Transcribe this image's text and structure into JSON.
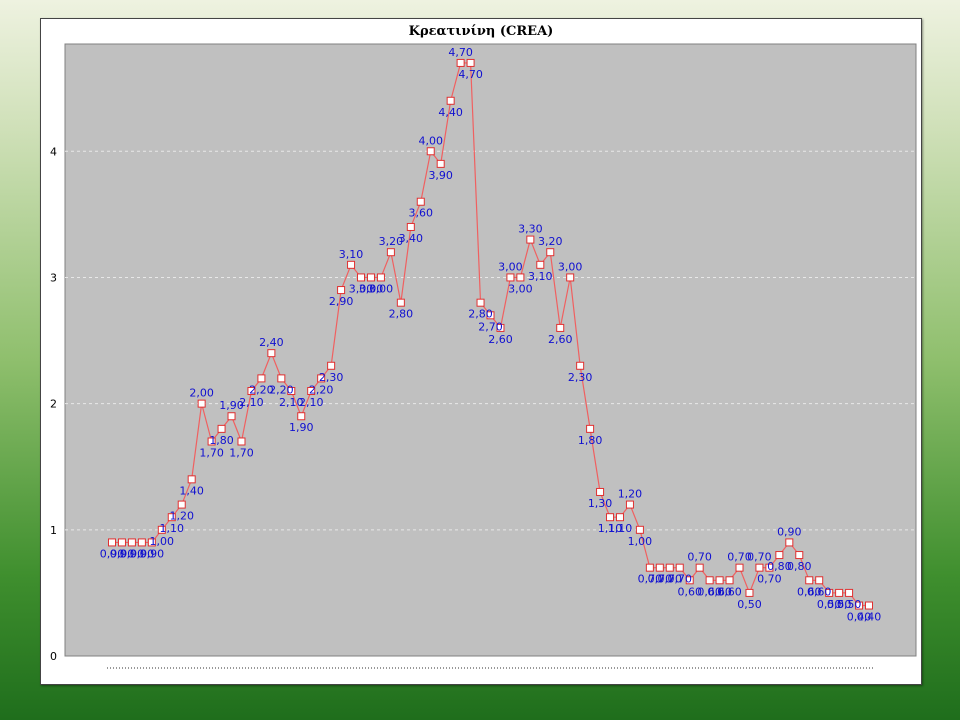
{
  "chart_data": {
    "type": "line",
    "title": "Κρεατινίνη  (CREA)",
    "xlabel": "",
    "ylabel": "",
    "ylim": [
      0,
      4.85
    ],
    "yticks": [
      0,
      1,
      2,
      3,
      4
    ],
    "grid": true,
    "legend": "none",
    "colors": {
      "line": "#f06060",
      "marker": "#e03030",
      "label": "#1010d0",
      "plot_bg": "#c0c0c0",
      "grid": "#e8e8e8"
    },
    "series": [
      {
        "values": [
          0.9,
          0.9,
          0.9,
          0.9,
          0.9,
          1.0,
          1.1,
          1.2,
          1.4,
          2.0,
          1.7,
          1.8,
          1.9,
          1.7,
          2.1,
          2.2,
          2.4,
          2.2,
          2.1,
          1.9,
          2.1,
          2.2,
          2.3,
          2.9,
          3.1,
          3.0,
          3.0,
          3.0,
          3.2,
          2.8,
          3.4,
          3.6,
          4.0,
          3.9,
          4.4,
          4.7,
          4.7,
          2.8,
          2.7,
          2.6,
          3.0,
          3.0,
          3.3,
          3.1,
          3.2,
          2.6,
          3.0,
          2.3,
          1.8,
          1.3,
          1.1,
          1.1,
          1.2,
          1.0,
          0.7,
          0.7,
          0.7,
          0.7,
          0.6,
          0.7,
          0.6,
          0.6,
          0.6,
          0.7,
          0.5,
          0.7,
          0.7,
          0.8,
          0.9,
          0.8,
          0.6,
          0.6,
          0.5,
          0.5,
          0.5,
          0.4,
          0.4
        ],
        "labels": [
          "0,90",
          "0,90",
          "0,90",
          "0,90",
          "0,90",
          "1,00",
          "1,10",
          "1,20",
          "1,40",
          "2,00",
          "1,70",
          "1,80",
          "1,90",
          "1,70",
          "2,10",
          "2,20",
          "2,40",
          "2,20",
          "2,10",
          "1,90",
          "2,10",
          "2,20",
          "2,30",
          "2,90",
          "3,10",
          "3,00",
          "3,00",
          "3,00",
          "3,20",
          "2,80",
          "3,40",
          "3,60",
          "4,00",
          "3,90",
          "4,40",
          "4,70",
          "4,70",
          "2,80",
          "2,70",
          "2,60",
          "3,00",
          "3,00",
          "3,30",
          "3,10",
          "3,20",
          "2,60",
          "3,00",
          "2,30",
          "1,80",
          "1,30",
          "1,10",
          "1,10",
          "1,20",
          "1,00",
          "0,70",
          "0,70",
          "0,70",
          "0,70",
          "0,60",
          "0,70",
          "0,60",
          "0,60",
          "0,60",
          "0,70",
          "0,50",
          "0,70",
          "0,70",
          "0,80",
          "0,90",
          "0,80",
          "0,60",
          "0,60",
          "0,50",
          "0,50",
          "0,50",
          "0,40",
          "0,40"
        ]
      }
    ]
  }
}
